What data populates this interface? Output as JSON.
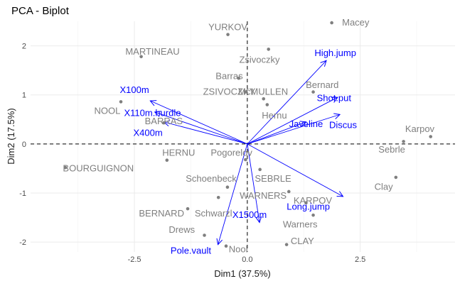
{
  "chart_data": {
    "type": "scatter",
    "title": "PCA - Biplot",
    "xlabel": "Dim1 (37.5%)",
    "ylabel": "Dim2 (17.5%)",
    "xlim": [
      -4.8,
      4.6
    ],
    "ylim": [
      -2.2,
      2.5
    ],
    "xticks": [
      -2.5,
      0.0,
      2.5
    ],
    "xtick_labels": [
      "-2.5",
      "0.0",
      "2.5"
    ],
    "yticks": [
      -2,
      -1,
      0,
      1,
      2
    ],
    "ytick_labels": [
      "-2",
      "-1",
      "0",
      "1",
      "2"
    ],
    "grid": true,
    "point_color": "#7f7f7f",
    "arrow_color": "#0000ff",
    "individuals": [
      {
        "name": "Macey",
        "x": 1.87,
        "y": 2.47,
        "lx": 2.4,
        "ly": 2.47
      },
      {
        "name": "YURKOV",
        "x": -0.43,
        "y": 2.23,
        "lx": -0.43,
        "ly": 2.38
      },
      {
        "name": "Zsivoczky",
        "x": 0.47,
        "y": 1.93,
        "lx": 0.27,
        "ly": 1.71
      },
      {
        "name": "MARTINEAU",
        "x": -2.35,
        "y": 1.78,
        "lx": -2.1,
        "ly": 1.88
      },
      {
        "name": "Barras",
        "x": -0.19,
        "y": 1.34,
        "lx": -0.4,
        "ly": 1.38
      },
      {
        "name": "Bernard",
        "x": 1.46,
        "y": 1.06,
        "lx": 1.66,
        "ly": 1.2
      },
      {
        "name": "ZSIVOCZKY",
        "x": -0.03,
        "y": 1.06,
        "lx": -0.4,
        "ly": 1.06
      },
      {
        "name": "McMULLEN",
        "x": 0.36,
        "y": 0.92,
        "lx": 0.35,
        "ly": 1.06
      },
      {
        "name": "NOOL",
        "x": -2.8,
        "y": 0.86,
        "lx": -3.1,
        "ly": 0.67
      },
      {
        "name": "Hernu",
        "x": 0.44,
        "y": 0.8,
        "lx": 0.6,
        "ly": 0.58
      },
      {
        "name": "BARRAS",
        "x": -1.85,
        "y": 0.43,
        "lx": -1.85,
        "ly": 0.46
      },
      {
        "name": "Karpov",
        "x": 4.06,
        "y": 0.15,
        "lx": 3.82,
        "ly": 0.3
      },
      {
        "name": "Sebrle",
        "x": 3.46,
        "y": 0.05,
        "lx": 3.2,
        "ly": -0.12
      },
      {
        "name": "HERNU",
        "x": -1.78,
        "y": -0.33,
        "lx": -1.52,
        "ly": -0.18
      },
      {
        "name": "Pogorelov",
        "x": -0.04,
        "y": -0.32,
        "lx": -0.35,
        "ly": -0.18
      },
      {
        "name": "BOURGUIGNON",
        "x": -4.03,
        "y": -0.48,
        "lx": -3.3,
        "ly": -0.5
      },
      {
        "name": "SEBRLE",
        "x": 0.28,
        "y": -0.52,
        "lx": 0.57,
        "ly": -0.71
      },
      {
        "name": "Schoenbeck",
        "x": -0.44,
        "y": -0.88,
        "lx": -0.8,
        "ly": -0.71
      },
      {
        "name": "Clay",
        "x": 3.29,
        "y": -0.68,
        "lx": 3.02,
        "ly": -0.88
      },
      {
        "name": "WARNERS",
        "x": 0.92,
        "y": -0.97,
        "lx": 0.35,
        "ly": -1.06
      },
      {
        "name": "KARPOV",
        "x": 1.3,
        "y": -1.2,
        "lx": 1.45,
        "ly": -1.16
      },
      {
        "name": "Schwarzl",
        "x": -0.64,
        "y": -1.09,
        "lx": -0.75,
        "ly": -1.42
      },
      {
        "name": "BERNARD",
        "x": -1.32,
        "y": -1.32,
        "lx": -1.9,
        "ly": -1.42
      },
      {
        "name": "Warners",
        "x": 1.46,
        "y": -1.45,
        "lx": 1.17,
        "ly": -1.64
      },
      {
        "name": "Drews",
        "x": -0.95,
        "y": -1.86,
        "lx": -1.45,
        "ly": -1.75
      },
      {
        "name": "CLAY",
        "x": 0.87,
        "y": -2.05,
        "lx": 1.22,
        "ly": -1.98
      },
      {
        "name": "Nool",
        "x": -0.47,
        "y": -2.08,
        "lx": -0.2,
        "ly": -2.15
      }
    ],
    "variables": [
      {
        "name": "High.jump",
        "x": 1.75,
        "y": 1.7,
        "lx": 1.95,
        "ly": 1.85
      },
      {
        "name": "Shot.put",
        "x": 2.0,
        "y": 0.95,
        "lx": 1.92,
        "ly": 0.93
      },
      {
        "name": "Discus",
        "x": 2.05,
        "y": 0.6,
        "lx": 2.12,
        "ly": 0.38
      },
      {
        "name": "Javeline",
        "x": 1.3,
        "y": 0.45,
        "lx": 1.3,
        "ly": 0.4
      },
      {
        "name": "X100m",
        "x": -2.15,
        "y": 0.88,
        "lx": -2.5,
        "ly": 1.1
      },
      {
        "name": "X110m.hurdle",
        "x": -2.05,
        "y": 0.65,
        "lx": -2.1,
        "ly": 0.63
      },
      {
        "name": "X400m",
        "x": -1.85,
        "y": 0.45,
        "lx": -2.2,
        "ly": 0.22
      },
      {
        "name": "X1500m",
        "x": 0.27,
        "y": -1.6,
        "lx": 0.05,
        "ly": -1.45
      },
      {
        "name": "Long.jump",
        "x": 2.12,
        "y": -1.07,
        "lx": 1.35,
        "ly": -1.28
      },
      {
        "name": "Pole.vault",
        "x": -0.65,
        "y": -2.05,
        "lx": -1.25,
        "ly": -2.18
      }
    ]
  }
}
